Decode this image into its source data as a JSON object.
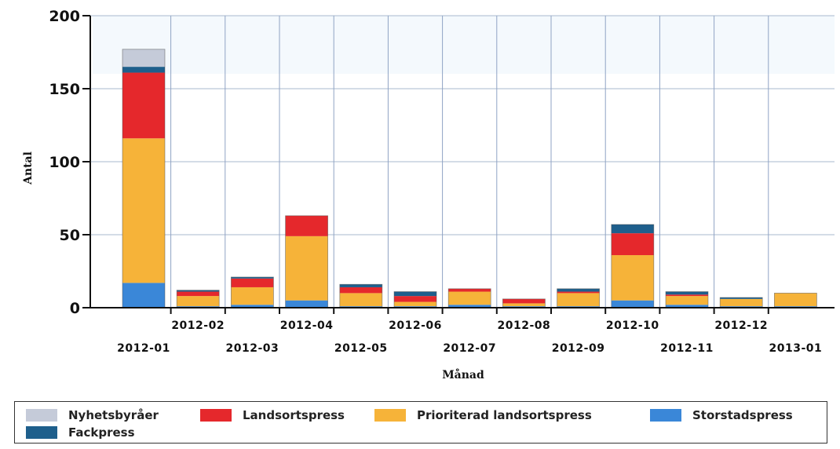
{
  "chart_data": {
    "type": "bar",
    "stacked": true,
    "xlabel": "Månad",
    "ylabel": "Antal",
    "ylim": [
      0,
      200
    ],
    "yticks": [
      0,
      50,
      100,
      150,
      200
    ],
    "grid": true,
    "legend_position": "bottom",
    "categories": [
      "2012-01",
      "2012-02",
      "2012-03",
      "2012-04",
      "2012-05",
      "2012-06",
      "2012-07",
      "2012-08",
      "2012-09",
      "2012-10",
      "2012-11",
      "2012-12",
      "2013-01"
    ],
    "series": [
      {
        "name": "Storstadspress",
        "color": "#3a87d8",
        "values": [
          17,
          1,
          2,
          5,
          1,
          1,
          2,
          1,
          1,
          5,
          2,
          1,
          1
        ]
      },
      {
        "name": "Prioriterad landsortspress",
        "color": "#f6b339",
        "values": [
          99,
          7,
          12,
          44,
          9,
          3,
          9,
          2,
          9,
          31,
          6,
          5,
          9
        ]
      },
      {
        "name": "Landsortspress",
        "color": "#e5282c",
        "values": [
          45,
          3,
          6,
          14,
          4,
          4,
          2,
          3,
          1,
          15,
          1,
          0,
          0
        ]
      },
      {
        "name": "Fackpress",
        "color": "#1e5f8c",
        "values": [
          4,
          1,
          1,
          0,
          2,
          3,
          0,
          0,
          2,
          6,
          2,
          1,
          0
        ]
      },
      {
        "name": "Nyhetsbyråer",
        "color": "#c5cbd9",
        "values": [
          12,
          0,
          0,
          0,
          0,
          0,
          0,
          0,
          0,
          0,
          0,
          0,
          0
        ]
      }
    ]
  },
  "legend": [
    {
      "name": "Nyhetsbyråer",
      "color": "#c5cbd9"
    },
    {
      "name": "Landsortspress",
      "color": "#e5282c"
    },
    {
      "name": "Prioriterad landsortspress",
      "color": "#f6b339"
    },
    {
      "name": "Storstadspress",
      "color": "#3a87d8"
    },
    {
      "name": "Fackpress",
      "color": "#1e5f8c"
    }
  ]
}
